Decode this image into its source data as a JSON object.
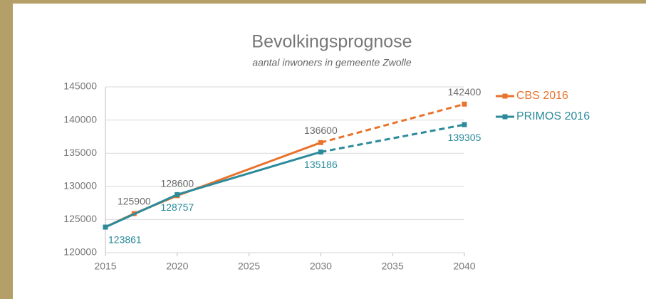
{
  "chart_data": {
    "type": "line",
    "title": "Bevolkingsprognose",
    "subtitle": "aantal inwoners in gemeente Zwolle",
    "xlim": [
      2015,
      2040
    ],
    "xticks": [
      2015,
      2020,
      2025,
      2030,
      2035,
      2040
    ],
    "ylim": [
      120000,
      145000
    ],
    "yticks": [
      120000,
      125000,
      130000,
      135000,
      140000,
      145000
    ],
    "grid": true,
    "legend": "right",
    "series": [
      {
        "name": "CBS 2016",
        "color": "#e8732c",
        "label_color": "#6b6b6b",
        "label_side": "above",
        "x": [
          2015,
          2017,
          2020,
          2030,
          2040
        ],
        "values": [
          123861,
          125900,
          128600,
          136600,
          142400
        ],
        "labeled": [
          false,
          true,
          true,
          true,
          true
        ],
        "segment_styles": [
          "solid",
          "solid",
          "solid",
          "dashed"
        ]
      },
      {
        "name": "PRIMOS 2016",
        "color": "#2b8b9b",
        "label_color": "#2b8b9b",
        "label_side": "below",
        "x": [
          2015,
          2020,
          2030,
          2040
        ],
        "values": [
          123861,
          128757,
          135186,
          139305
        ],
        "labeled": [
          true,
          true,
          true,
          true
        ],
        "segment_styles": [
          "solid",
          "solid",
          "dashed"
        ]
      }
    ]
  }
}
